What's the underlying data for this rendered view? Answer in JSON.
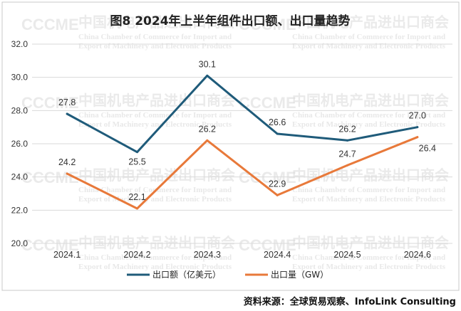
{
  "title": "图8   2024年上半年组件出口额、出口量趋势",
  "source": "资料来源：全球贸易观察、InfoLink Consulting",
  "watermark": {
    "cn": "中国机电产品进出口商会",
    "en_line1": "China Chamber of Commerce for Import and",
    "en_line2": "Export of Machinery and Electronic Products",
    "logo": "CCCME"
  },
  "colors": {
    "export_value": "#1f5b7a",
    "export_volume": "#e8793a",
    "grid": "#d9d9d9",
    "border": "#c8c8c8"
  },
  "chart_data": {
    "type": "line",
    "title": "图8   2024年上半年组件出口额、出口量趋势",
    "categories": [
      "2024.1",
      "2024.2",
      "2024.3",
      "2024.4",
      "2024.5",
      "2024.6"
    ],
    "ylim": [
      20.0,
      32.0
    ],
    "yticks": [
      "20.0",
      "22.0",
      "24.0",
      "26.0",
      "28.0",
      "30.0",
      "32.0"
    ],
    "grid": true,
    "legend_position": "bottom",
    "series": [
      {
        "name": "出口额（亿美元）",
        "values": [
          27.8,
          25.5,
          30.1,
          26.6,
          26.2,
          27.0
        ],
        "labels": [
          "27.8",
          "25.5",
          "30.1",
          "26.6",
          "26.2",
          "27.0"
        ]
      },
      {
        "name": "出口量（GW）",
        "values": [
          24.2,
          22.1,
          26.2,
          22.9,
          24.7,
          26.4
        ],
        "labels": [
          "24.2",
          "22.1",
          "26.2",
          "22.9",
          "24.7",
          "26.4"
        ]
      }
    ]
  }
}
